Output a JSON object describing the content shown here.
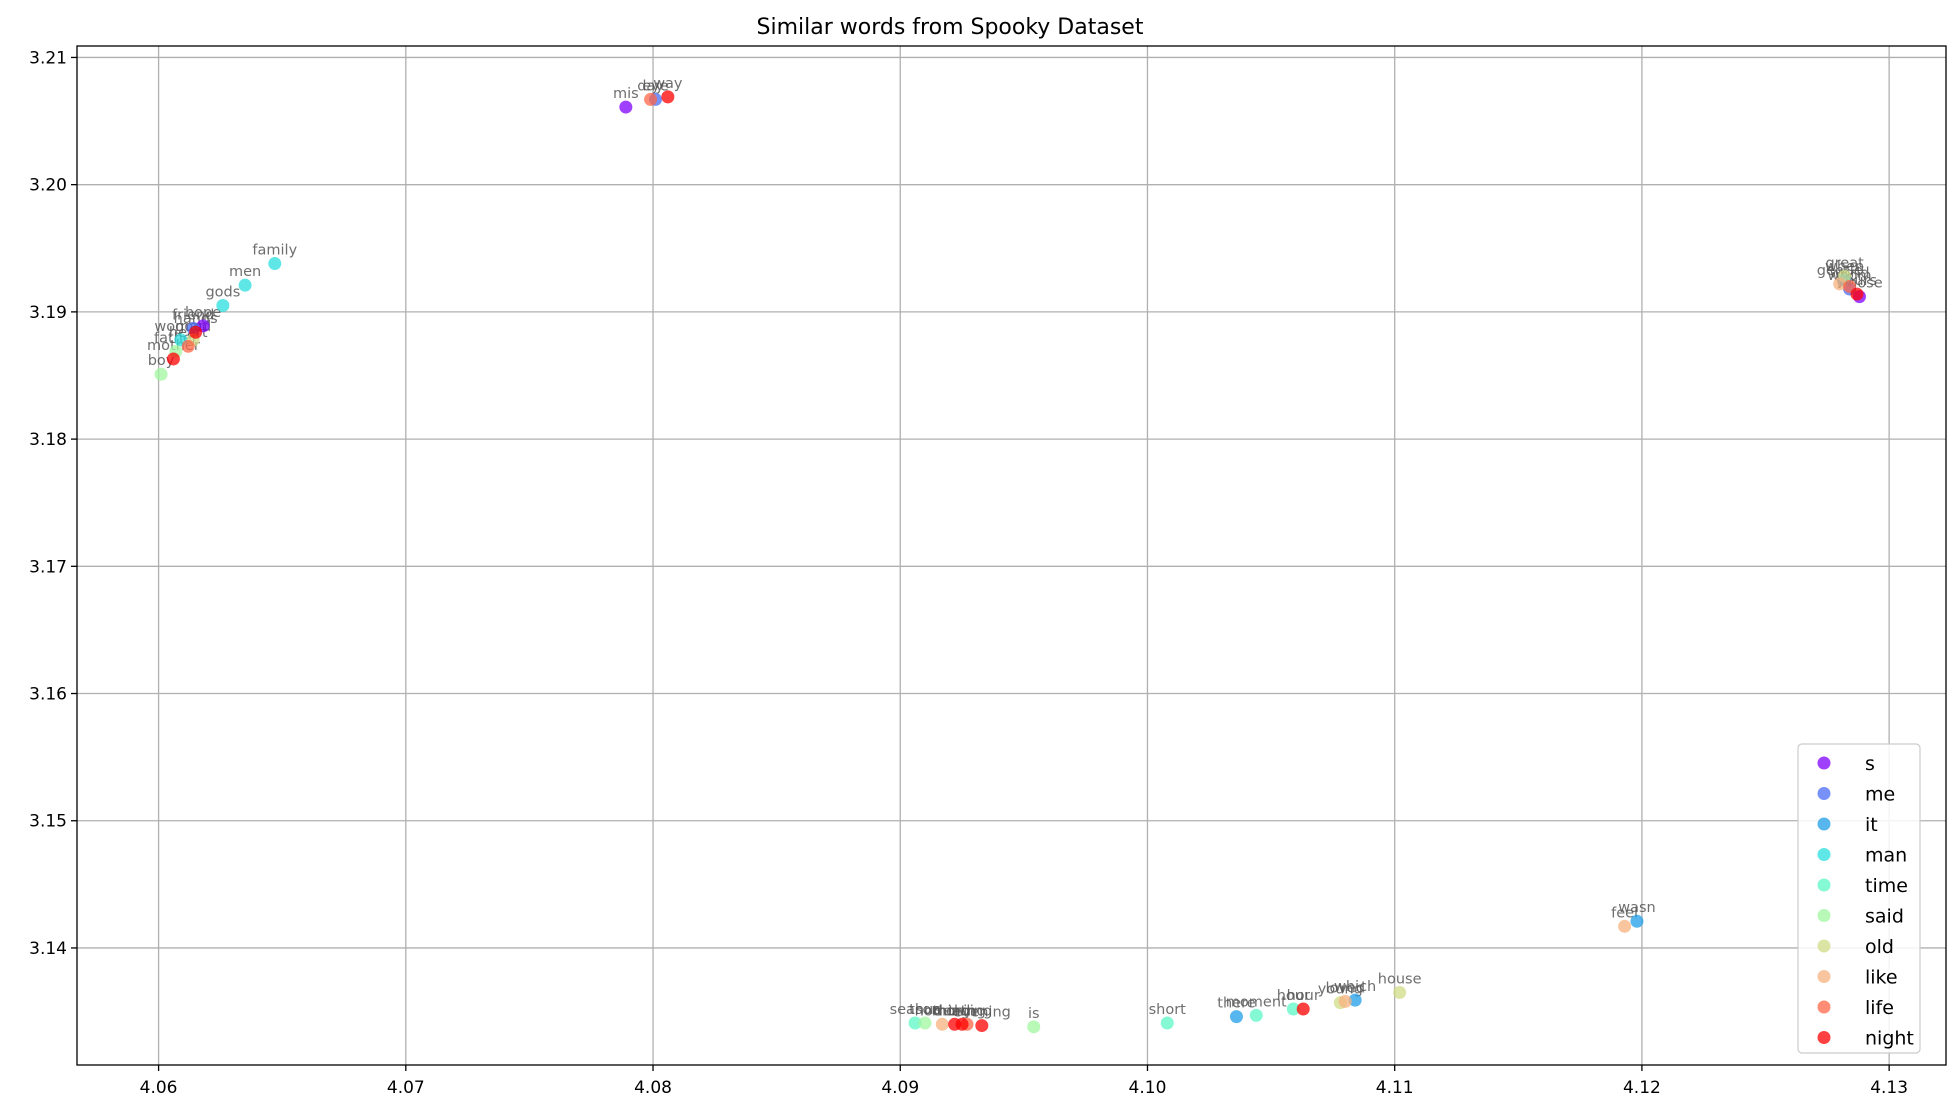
{
  "chart_data": {
    "type": "scatter",
    "title": "Similar words from Spooky Dataset",
    "xlabel": "",
    "ylabel": "",
    "xlim": [
      4.0567,
      4.1323
    ],
    "ylim": [
      3.1308,
      3.2109
    ],
    "xticks": [
      "4.06",
      "4.07",
      "4.08",
      "4.09",
      "4.10",
      "4.11",
      "4.12",
      "4.13"
    ],
    "yticks": [
      "3.14",
      "3.15",
      "3.16",
      "3.17",
      "3.18",
      "3.19",
      "3.20",
      "3.21"
    ],
    "grid": true,
    "legend_position": "lower right",
    "series": [
      {
        "name": "s",
        "color": "#8000ff",
        "points": [
          {
            "x": 4.0789,
            "y": 3.2061,
            "label": "mis"
          },
          {
            "x": 4.0618,
            "y": 3.1889,
            "label": "hope"
          },
          {
            "x": 4.1288,
            "y": 3.1912,
            "label": "whose"
          }
        ]
      },
      {
        "name": "me",
        "color": "#4a6cf5",
        "points": [
          {
            "x": 4.0801,
            "y": 3.2067,
            "label": "eye"
          },
          {
            "x": 4.0614,
            "y": 3.1887,
            "label": "friend"
          },
          {
            "x": 4.1284,
            "y": 3.1918,
            "label": "whom"
          }
        ]
      },
      {
        "name": "it",
        "color": "#1f9ee8",
        "points": [
          {
            "x": 4.1036,
            "y": 3.1346,
            "label": "there"
          },
          {
            "x": 4.1084,
            "y": 3.1359,
            "label": "which"
          },
          {
            "x": 4.1198,
            "y": 3.1421,
            "label": "wasn"
          },
          {
            "x": 4.1282,
            "y": 3.1925,
            "label": "when"
          }
        ]
      },
      {
        "name": "man",
        "color": "#2adddd",
        "points": [
          {
            "x": 4.0647,
            "y": 3.1938,
            "label": "family"
          },
          {
            "x": 4.0635,
            "y": 3.1921,
            "label": "men"
          },
          {
            "x": 4.0626,
            "y": 3.1905,
            "label": "gods"
          },
          {
            "x": 4.0609,
            "y": 3.1878,
            "label": "woman"
          }
        ]
      },
      {
        "name": "time",
        "color": "#5cf7c6",
        "points": [
          {
            "x": 4.0906,
            "y": 3.1341,
            "label": "season"
          },
          {
            "x": 4.1008,
            "y": 3.1341,
            "label": "short"
          },
          {
            "x": 4.1044,
            "y": 3.1347,
            "label": "moment"
          },
          {
            "x": 4.1059,
            "y": 3.1352,
            "label": "hour"
          }
        ]
      },
      {
        "name": "said",
        "color": "#a0f7a0",
        "points": [
          {
            "x": 4.091,
            "y": 3.1341,
            "label": "thus"
          },
          {
            "x": 4.0954,
            "y": 3.1338,
            "label": "is"
          },
          {
            "x": 4.0601,
            "y": 3.1851,
            "label": "boy"
          },
          {
            "x": 4.0607,
            "y": 3.1869,
            "label": "father"
          }
        ]
      },
      {
        "name": "old",
        "color": "#d2dc85",
        "points": [
          {
            "x": 4.1102,
            "y": 3.1365,
            "label": "house"
          },
          {
            "x": 4.1078,
            "y": 3.1357,
            "label": "young"
          },
          {
            "x": 4.0614,
            "y": 3.1878,
            "label": "good"
          },
          {
            "x": 4.1282,
            "y": 3.1928,
            "label": "great"
          }
        ]
      },
      {
        "name": "like",
        "color": "#f7b27d",
        "points": [
          {
            "x": 4.1193,
            "y": 3.1417,
            "label": "feel"
          },
          {
            "x": 4.108,
            "y": 3.1358,
            "label": "loved"
          },
          {
            "x": 4.0917,
            "y": 3.134,
            "label": "nothing"
          },
          {
            "x": 4.128,
            "y": 3.1922,
            "label": "gentle"
          }
        ]
      },
      {
        "name": "life",
        "color": "#ff6647",
        "points": [
          {
            "x": 4.0799,
            "y": 3.2067,
            "label": "day"
          },
          {
            "x": 4.0927,
            "y": 3.134,
            "label": "thing"
          },
          {
            "x": 4.0612,
            "y": 3.1873,
            "label": "heart"
          },
          {
            "x": 4.1284,
            "y": 3.192,
            "label": "world"
          }
        ]
      },
      {
        "name": "night",
        "color": "#ff0000",
        "points": [
          {
            "x": 4.0806,
            "y": 3.2069,
            "label": "way"
          },
          {
            "x": 4.0933,
            "y": 3.1339,
            "label": "evening"
          },
          {
            "x": 4.0922,
            "y": 3.134,
            "label": "death"
          },
          {
            "x": 4.0925,
            "y": 3.134,
            "label": "morning"
          },
          {
            "x": 4.1063,
            "y": 3.1352,
            "label": "hour"
          },
          {
            "x": 4.0606,
            "y": 3.1863,
            "label": "mother"
          },
          {
            "x": 4.0615,
            "y": 3.1884,
            "label": "hands"
          },
          {
            "x": 4.1287,
            "y": 3.1914,
            "label": "yours"
          }
        ]
      }
    ]
  }
}
